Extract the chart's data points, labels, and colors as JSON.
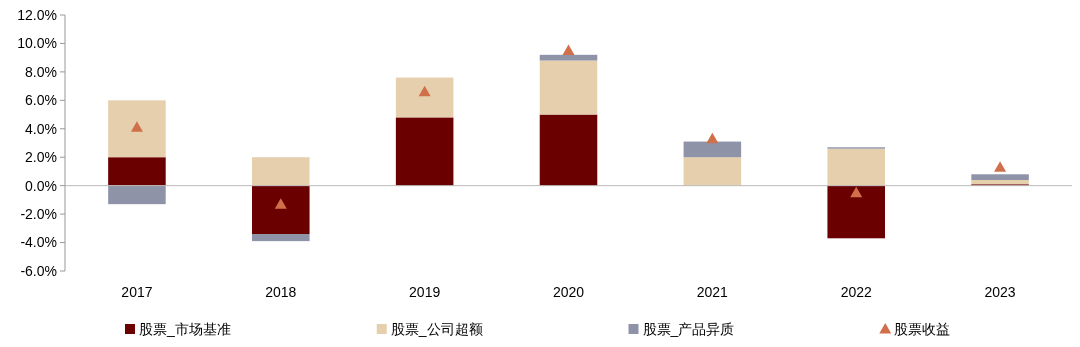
{
  "chart_data": {
    "type": "bar",
    "stacked": true,
    "categories": [
      "2017",
      "2018",
      "2019",
      "2020",
      "2021",
      "2022",
      "2023"
    ],
    "series": [
      {
        "name": "股票_市场基准",
        "color": "#6b0000",
        "values": [
          2.0,
          -3.4,
          4.8,
          5.0,
          0,
          -3.7,
          0.1
        ]
      },
      {
        "name": "股票_公司超额",
        "color": "#e6cfad",
        "values": [
          4.0,
          2.0,
          2.8,
          3.8,
          2.0,
          2.6,
          0.3
        ]
      },
      {
        "name": "股票_产品异质",
        "color": "#8e93a8",
        "values": [
          -1.3,
          -0.5,
          0,
          0.4,
          1.1,
          0.1,
          0.4
        ]
      },
      {
        "name": "股票收益",
        "type": "scatter",
        "marker": "triangle",
        "color": "#d0704a",
        "values": [
          4.1,
          -1.3,
          6.6,
          9.5,
          3.3,
          -0.5,
          1.3
        ]
      }
    ],
    "ylim": [
      -6,
      12
    ],
    "yticks": [
      {
        "value": -6,
        "label": "-6.0%"
      },
      {
        "value": -4,
        "label": "-4.0%"
      },
      {
        "value": -2,
        "label": "-2.0%"
      },
      {
        "value": 0,
        "label": "0.0%"
      },
      {
        "value": 2,
        "label": "2.0%"
      },
      {
        "value": 4,
        "label": "4.0%"
      },
      {
        "value": 6,
        "label": "6.0%"
      },
      {
        "value": 8,
        "label": "8.0%"
      },
      {
        "value": 10,
        "label": "10.0%"
      },
      {
        "value": 12,
        "label": "12.0%"
      }
    ],
    "legend": "bottom"
  }
}
